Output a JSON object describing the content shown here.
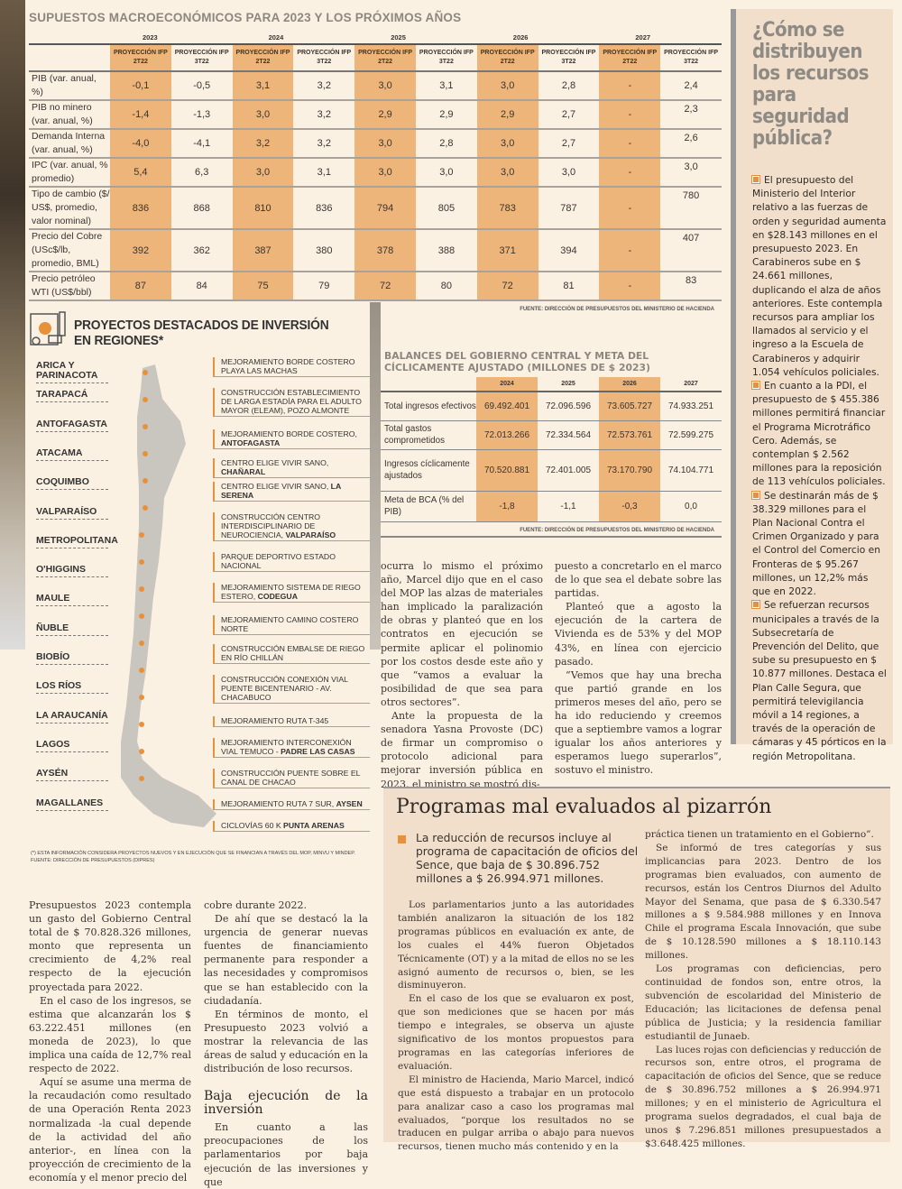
{
  "macro": {
    "title": "SUPUESTOS MACROECONÓMICOS PARA 2023 Y LOS PRÓXIMOS AÑOS",
    "years": [
      "2023",
      "2024",
      "2025",
      "2026",
      "2027"
    ],
    "col_headers": [
      "PROYECCIÓN IFP 2T22",
      "PROYECCIÓN IFP 3T22",
      "PROYECCIÓN IFP 2T22",
      "PROYECCIÓN IFP 3T22",
      "PROYECCIÓN IFP 2T22",
      "PROYECCIÓN IFP 3T22",
      "PROYECCIÓN IFP 2T22",
      "PROYECCIÓN IFP 3T22",
      "PROYECCIÓN IFP 2T22",
      "PROYECCIÓN IFP 3T22"
    ],
    "rows": [
      {
        "label": "PIB (var. anual, %)",
        "values": [
          "-0,1",
          "-0,5",
          "3,1",
          "3,2",
          "3,0",
          "3,1",
          "3,0",
          "2,8",
          "-",
          "2,4"
        ]
      },
      {
        "label": "PIB no minero (var. anual, %)",
        "values": [
          "-1,4",
          "-1,3",
          "3,0",
          "3,2",
          "2,9",
          "2,9",
          "2,9",
          "2,7",
          "-",
          "2,3"
        ]
      },
      {
        "label": "Demanda Interna (var. anual, %)",
        "values": [
          "-4,0",
          "-4,1",
          "3,2",
          "3,2",
          "3,0",
          "2,8",
          "3,0",
          "2,7",
          "-",
          "2,6"
        ]
      },
      {
        "label": "IPC (var. anual, % promedio)",
        "values": [
          "5,4",
          "6,3",
          "3,0",
          "3,1",
          "3,0",
          "3,0",
          "3,0",
          "3,0",
          "-",
          "3,0"
        ]
      },
      {
        "label": "Tipo de cambio ($/ US$, promedio, valor nominal)",
        "values": [
          "836",
          "868",
          "810",
          "836",
          "794",
          "805",
          "783",
          "787",
          "-",
          "780"
        ]
      },
      {
        "label": "Precio del Cobre (USc$/lb, promedio, BML)",
        "values": [
          "392",
          "362",
          "387",
          "380",
          "378",
          "388",
          "371",
          "394",
          "-",
          "407"
        ]
      },
      {
        "label": "Precio petróleo WTI (US$/bbl)",
        "values": [
          "87",
          "84",
          "75",
          "79",
          "72",
          "80",
          "72",
          "81",
          "-",
          "83"
        ]
      }
    ],
    "source": "FUENTE: DIRECCIÓN DE PRESUPUESTOS DEL MINISTERIO DE HACIENDA"
  },
  "sidebar": {
    "title": "¿Cómo se distribuyen los recursos para seguridad pública?",
    "items": [
      "El presupuesto del Ministerio del Interior relativo a las fuerzas de orden y seguridad aumenta en $28.143 millones en el presupuesto 2023. En Carabineros sube en $ 24.661 millones, duplicando el alza de años anteriores. Este contempla recursos para ampliar los llamados al servicio y el ingreso a la Escuela de Carabineros y adquirir 1.054 vehículos policiales.",
      "En cuanto a la PDI, el presupuesto de $ 455.386 millones permitirá financiar el Programa Microtráfico Cero. Además, se contemplan $ 2.562 millones para la reposición de 113 vehículos policiales.",
      "Se destinarán más de $ 38.329 millones para el Plan Nacional Contra el Crimen Organizado y para el Control del Comercio en Fronteras de $ 95.267 millones, un 12,2% más que en 2022.",
      "Se refuerzan recursos municipales a través de la Subsecretaría de Prevención del Delito, que sube su presupuesto en $ 10.877 millones. Destaca el Plan Calle Segura, que permitirá televigilancia móvil a 14 regiones, a través de la operación de cámaras y 45 pórticos en la región Metropolitana."
    ]
  },
  "map": {
    "title": "PROYECTOS DESTACADOS DE INVERSIÓN EN REGIONES*",
    "regions": [
      "ARICA Y PARINACOTA",
      "TARAPACÁ",
      "ANTOFAGASTA",
      "ATACAMA",
      "COQUIMBO",
      "VALPARAÍSO",
      "METROPOLITANA",
      "O'HIGGINS",
      "MAULE",
      "ÑUBLE",
      "BIOBÍO",
      "LOS RÍOS",
      "LA ARAUCANÍA",
      "LAGOS",
      "AYSÉN",
      "MAGALLANES"
    ],
    "projects": [
      {
        "text": "MEJORAMIENTO BORDE COSTERO PLAYA LAS MACHAS",
        "bold": ""
      },
      {
        "text": "CONSTRUCCIÓN ESTABLECIMIENTO DE LARGA ESTADÍA PARA EL ADULTO MAYOR (ELEAM), POZO ALMONTE",
        "bold": ""
      },
      {
        "text": "MEJORAMIENTO BORDE COSTERO, ",
        "bold": "ANTOFAGASTA"
      },
      {
        "text": "CENTRO ELIGE VIVIR SANO, ",
        "bold": "CHAÑARAL"
      },
      {
        "text": "CENTRO ELIGE VIVIR SANO, ",
        "bold": "LA SERENA"
      },
      {
        "text": "CONSTRUCCIÓN CENTRO INTERDISCIPLINARIO DE NEUROCIENCIA, ",
        "bold": "VALPARAÍSO"
      },
      {
        "text": "PARQUE DEPORTIVO ESTADO NACIONAL",
        "bold": ""
      },
      {
        "text": "MEJORAMIENTO SISTEMA DE RIEGO ESTERO, ",
        "bold": "CODEGUA"
      },
      {
        "text": "MEJORAMIENTO CAMINO COSTERO NORTE",
        "bold": ""
      },
      {
        "text": "CONSTRUCCIÓN EMBALSE DE RIEGO EN RÍO CHILLÁN",
        "bold": ""
      },
      {
        "text": "CONSTRUCCIÓN CONEXIÓN VIAL PUENTE BICENTENARIO - AV. CHACABUCO",
        "bold": ""
      },
      {
        "text": "MEJORAMIENTO RUTA T-345",
        "bold": ""
      },
      {
        "text": "MEJORAMIENTO INTERCONEXIÓN VIAL TEMUCO - ",
        "bold": "PADRE LAS CASAS"
      },
      {
        "text": "CONSTRUCCIÓN PUENTE SOBRE EL CANAL DE CHACAO",
        "bold": ""
      },
      {
        "text": "MEJORAMIENTO RUTA 7 SUR, ",
        "bold": "AYSEN"
      },
      {
        "text": "CICLOVÍAS 60 K ",
        "bold": "PUNTA ARENAS"
      }
    ],
    "note": "(*) ESTA INFORMACIÓN CONSIDERA PROYECTOS NUEVOS Y EN EJECUCIÓN QUE SE FINANCIAN A TRAVÉS DEL MOP, MINVU Y MINDEP.",
    "source": "FUENTE: DIRECCIÓN DE PRESUPUESTOS (DIPRES)"
  },
  "balances": {
    "title": "BALANCES DEL GOBIERNO CENTRAL Y META DEL CÍCLICAMENTE AJUSTADO (MILLONES DE $ 2023)",
    "years": [
      "2024",
      "2025",
      "2026",
      "2027"
    ],
    "rows": [
      {
        "label": "Total ingresos efectivos",
        "values": [
          "69.492.401",
          "72.096.596",
          "73.605.727",
          "74.933.251"
        ]
      },
      {
        "label": "Total gastos comprometidos",
        "values": [
          "72.013.266",
          "72.334.564",
          "72.573.761",
          "72.599.275"
        ]
      },
      {
        "label": "Ingresos cíclicamente ajustados",
        "values": [
          "70.520.881",
          "72.401.005",
          "73.170.790",
          "74.104.771"
        ]
      },
      {
        "label": "Meta de BCA (% del PIB)",
        "values": [
          "-1,8",
          "-1,1",
          "-0,3",
          "0,0"
        ]
      }
    ],
    "source": "FUENTE: DIRECCIÓN DE PRESUPUESTOS DEL MINISTERIO DE HACIENDA"
  },
  "article": {
    "mid_col1": [
      "ocurra lo mismo el próximo año, Marcel dijo que en el caso del MOP las alzas de materiales han implicado la paralización de obras y planteó que en los contratos en ejecución se permite aplicar el polinomio por los costos desde este año y que “vamos a evaluar la posibilidad de que sea para otros sectores”.",
      "Ante la propuesta de la senadora Yasna Provoste (DC) de firmar un compromiso o protocolo adicional para mejorar inversión pública en 2023, el ministro se mostró dis-"
    ],
    "mid_col2": [
      "puesto a concretarlo en el marco de lo que sea el debate sobre las partidas.",
      "Planteó que a agosto la ejecución de la cartera de Vivienda es de 53% y del MOP 43%, en línea con ejercicio pasado.",
      "“Vemos que hay una brecha que partió grande en los primeros meses del año, pero se ha ido reduciendo y creemos que a septiembre vamos a lograr igualar los años anteriores y esperamos luego superarlos”, sostuvo el ministro."
    ],
    "bot_col1": [
      "Presupuestos 2023 contempla un gasto del Gobierno Central total de $ 70.828.326 millones, monto que representa un crecimiento de 4,2% real respecto de la ejecución proyectada para 2022.",
      "En el caso de los ingresos, se estima que alcanzarán los $ 63.222.451 millones (en moneda de 2023), lo que implica una caída de 12,7% real respecto de 2022.",
      "Aquí se asume una merma de la recaudación como resultado de una Operación Renta 2023 normalizada -la cual depende de la actividad del año anterior-, en línea con la proyección de crecimiento de la economía y el menor precio del"
    ],
    "bot_col2": [
      "cobre durante 2022.",
      "De ahí que se destacó la la urgencia de generar nuevas fuentes de financiamiento permanente para responder a las necesidades y compromisos que se han establecido con la ciudadanía.",
      "En términos de monto, el Presupuesto 2023 volvió a mostrar la relevancia de las áreas de salud y educación en la distribución de loso recursos."
    ],
    "subhead": "Baja ejecución de la inversión",
    "bot_col2_after": "En cuanto a las preocupaciones de los parlamentarios por baja ejecución de las inversiones y que"
  },
  "programs": {
    "title": "Programas mal evaluados al pizarrón",
    "lead": "La reducción de recursos incluye al programa de capacitación de oficios del Sence, que baja de $ 30.896.752 millones a $ 26.994.971 millones.",
    "col1": [
      "Los parlamentarios junto a las autoridades también analizaron la situación de los 182 programas públicos en evaluación ex ante, de los cuales el 44% fueron Objetados Técnicamente (OT) y a la mitad de ellos no se les asignó aumento de recursos o, bien, se les disminuyeron.",
      "En el caso de los que se evaluaron ex post, que son mediciones que se hacen por más tiempo e integrales, se observa un ajuste significativo de los montos propuestos para programas en las categorías inferiores de evaluación.",
      "El ministro de Hacienda, Mario Marcel, indicó que está dispuesto a trabajar en un protocolo para analizar caso a caso los programas mal evaluados, “porque los resultados no se traducen en pulgar arriba o abajo para nuevos recursos, tienen mucho más contenido y en la"
    ],
    "col2": [
      "práctica tienen un tratamiento en el Gobierno”.",
      "Se informó de tres categorías y sus implicancias para 2023. Dentro de los programas bien evaluados, con aumento de recursos, están los Centros Diurnos del Adulto Mayor del Senama, que pasa de $ 6.330.547 millones a $ 9.584.988 millones y en Innova Chile el programa Escala Innovación, que sube de $ 10.128.590 millones a $ 18.110.143 millones.",
      "Los programas con deficiencias, pero continuidad de fondos son, entre otros, la subvención de escolaridad del Ministerio de Educación; las licitaciones de defensa penal pública de Justicia; y la residencia familiar estudiantil de Junaeb.",
      "Las luces rojas con deficiencias y reducción de recursos son, entre otros, el programa de capacitación de oficios del Sence, que se reduce de $ 30.896.752 millones a $ 26.994.971 millones; y en el ministerio de Agricultura el programa suelos degradados, el cual baja de unos $ 7.296.851 millones presupuestados a $3.648.425 millones."
    ]
  },
  "colors": {
    "accent": "#e8913c",
    "highlight": "#eeb57a",
    "box": "#f2dfcb",
    "page": "#fbf1e3"
  }
}
